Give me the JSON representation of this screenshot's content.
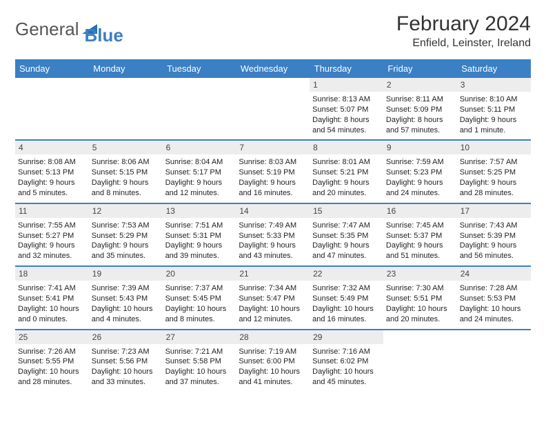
{
  "brand": {
    "part1": "General",
    "part2": "Blue",
    "icon_color": "#2b6fb3"
  },
  "title": "February 2024",
  "location": "Enfield, Leinster, Ireland",
  "colors": {
    "header_bg": "#3b7fc4",
    "header_fg": "#ffffff",
    "daynum_bg": "#ededed",
    "rule": "#3b7fc4",
    "text": "#222222"
  },
  "fonts": {
    "title_size": 30,
    "location_size": 16,
    "weekday_size": 13,
    "body_size": 11
  },
  "weekdays": [
    "Sunday",
    "Monday",
    "Tuesday",
    "Wednesday",
    "Thursday",
    "Friday",
    "Saturday"
  ],
  "weeks": [
    [
      null,
      null,
      null,
      null,
      {
        "n": "1",
        "sr": "8:13 AM",
        "ss": "5:07 PM",
        "dl": "8 hours and 54 minutes."
      },
      {
        "n": "2",
        "sr": "8:11 AM",
        "ss": "5:09 PM",
        "dl": "8 hours and 57 minutes."
      },
      {
        "n": "3",
        "sr": "8:10 AM",
        "ss": "5:11 PM",
        "dl": "9 hours and 1 minute."
      }
    ],
    [
      {
        "n": "4",
        "sr": "8:08 AM",
        "ss": "5:13 PM",
        "dl": "9 hours and 5 minutes."
      },
      {
        "n": "5",
        "sr": "8:06 AM",
        "ss": "5:15 PM",
        "dl": "9 hours and 8 minutes."
      },
      {
        "n": "6",
        "sr": "8:04 AM",
        "ss": "5:17 PM",
        "dl": "9 hours and 12 minutes."
      },
      {
        "n": "7",
        "sr": "8:03 AM",
        "ss": "5:19 PM",
        "dl": "9 hours and 16 minutes."
      },
      {
        "n": "8",
        "sr": "8:01 AM",
        "ss": "5:21 PM",
        "dl": "9 hours and 20 minutes."
      },
      {
        "n": "9",
        "sr": "7:59 AM",
        "ss": "5:23 PM",
        "dl": "9 hours and 24 minutes."
      },
      {
        "n": "10",
        "sr": "7:57 AM",
        "ss": "5:25 PM",
        "dl": "9 hours and 28 minutes."
      }
    ],
    [
      {
        "n": "11",
        "sr": "7:55 AM",
        "ss": "5:27 PM",
        "dl": "9 hours and 32 minutes."
      },
      {
        "n": "12",
        "sr": "7:53 AM",
        "ss": "5:29 PM",
        "dl": "9 hours and 35 minutes."
      },
      {
        "n": "13",
        "sr": "7:51 AM",
        "ss": "5:31 PM",
        "dl": "9 hours and 39 minutes."
      },
      {
        "n": "14",
        "sr": "7:49 AM",
        "ss": "5:33 PM",
        "dl": "9 hours and 43 minutes."
      },
      {
        "n": "15",
        "sr": "7:47 AM",
        "ss": "5:35 PM",
        "dl": "9 hours and 47 minutes."
      },
      {
        "n": "16",
        "sr": "7:45 AM",
        "ss": "5:37 PM",
        "dl": "9 hours and 51 minutes."
      },
      {
        "n": "17",
        "sr": "7:43 AM",
        "ss": "5:39 PM",
        "dl": "9 hours and 56 minutes."
      }
    ],
    [
      {
        "n": "18",
        "sr": "7:41 AM",
        "ss": "5:41 PM",
        "dl": "10 hours and 0 minutes."
      },
      {
        "n": "19",
        "sr": "7:39 AM",
        "ss": "5:43 PM",
        "dl": "10 hours and 4 minutes."
      },
      {
        "n": "20",
        "sr": "7:37 AM",
        "ss": "5:45 PM",
        "dl": "10 hours and 8 minutes."
      },
      {
        "n": "21",
        "sr": "7:34 AM",
        "ss": "5:47 PM",
        "dl": "10 hours and 12 minutes."
      },
      {
        "n": "22",
        "sr": "7:32 AM",
        "ss": "5:49 PM",
        "dl": "10 hours and 16 minutes."
      },
      {
        "n": "23",
        "sr": "7:30 AM",
        "ss": "5:51 PM",
        "dl": "10 hours and 20 minutes."
      },
      {
        "n": "24",
        "sr": "7:28 AM",
        "ss": "5:53 PM",
        "dl": "10 hours and 24 minutes."
      }
    ],
    [
      {
        "n": "25",
        "sr": "7:26 AM",
        "ss": "5:55 PM",
        "dl": "10 hours and 28 minutes."
      },
      {
        "n": "26",
        "sr": "7:23 AM",
        "ss": "5:56 PM",
        "dl": "10 hours and 33 minutes."
      },
      {
        "n": "27",
        "sr": "7:21 AM",
        "ss": "5:58 PM",
        "dl": "10 hours and 37 minutes."
      },
      {
        "n": "28",
        "sr": "7:19 AM",
        "ss": "6:00 PM",
        "dl": "10 hours and 41 minutes."
      },
      {
        "n": "29",
        "sr": "7:16 AM",
        "ss": "6:02 PM",
        "dl": "10 hours and 45 minutes."
      },
      null,
      null
    ]
  ],
  "labels": {
    "sunrise": "Sunrise:",
    "sunset": "Sunset:",
    "daylight": "Daylight:"
  }
}
